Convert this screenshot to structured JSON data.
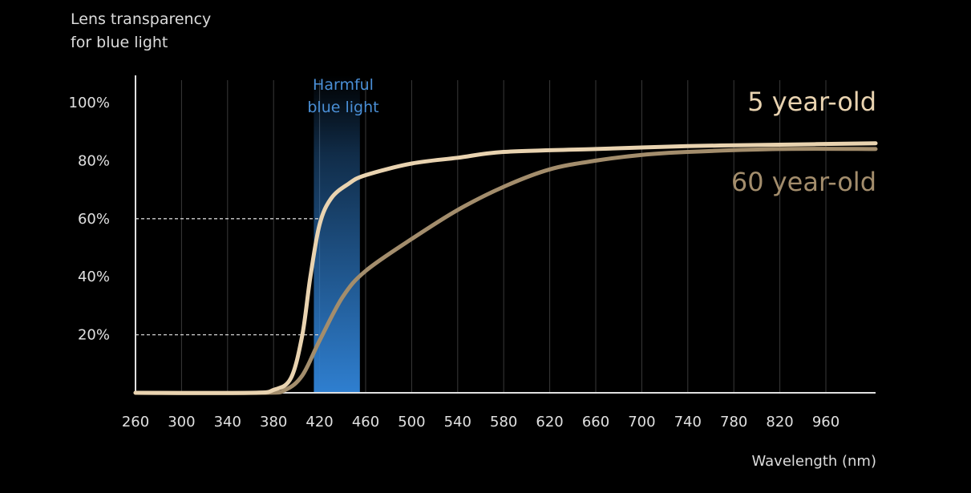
{
  "chart_data": {
    "type": "line",
    "title": "",
    "ylabel_line1": "Lens transparency",
    "ylabel_line2": "for blue light",
    "xlabel": "Wavelength (nm)",
    "x_ticks": [
      "260",
      "300",
      "340",
      "380",
      "420",
      "460",
      "500",
      "540",
      "580",
      "620",
      "660",
      "700",
      "740",
      "780",
      "820",
      "960"
    ],
    "y_ticks": [
      "20%",
      "40%",
      "60%",
      "80%",
      "100%"
    ],
    "ylim": [
      0,
      100
    ],
    "highlight_band": {
      "label_line1": "Harmful",
      "label_line2": "blue light",
      "x_from": 415,
      "x_to": 455,
      "color": "#2f7fd0"
    },
    "reference_lines": [
      {
        "y": 60,
        "x_to": 420
      },
      {
        "y": 20,
        "x_to": 420
      }
    ],
    "series": [
      {
        "name": "5 year-old",
        "color": "#e9d3b0",
        "points": [
          [
            260,
            0
          ],
          [
            360,
            0
          ],
          [
            380,
            1
          ],
          [
            395,
            5
          ],
          [
            405,
            20
          ],
          [
            412,
            40
          ],
          [
            420,
            58
          ],
          [
            430,
            67
          ],
          [
            445,
            72
          ],
          [
            460,
            75
          ],
          [
            500,
            79
          ],
          [
            540,
            81
          ],
          [
            580,
            83
          ],
          [
            660,
            84
          ],
          [
            740,
            85
          ],
          [
            820,
            85.5
          ],
          [
            960,
            86
          ]
        ]
      },
      {
        "name": "60 year-old",
        "color": "#a38d6c",
        "points": [
          [
            260,
            0
          ],
          [
            370,
            0
          ],
          [
            390,
            1
          ],
          [
            405,
            6
          ],
          [
            420,
            18
          ],
          [
            440,
            33
          ],
          [
            460,
            42
          ],
          [
            500,
            53
          ],
          [
            540,
            63
          ],
          [
            580,
            71
          ],
          [
            620,
            77
          ],
          [
            660,
            80
          ],
          [
            700,
            82
          ],
          [
            740,
            83
          ],
          [
            820,
            84
          ],
          [
            960,
            84
          ]
        ]
      }
    ]
  }
}
